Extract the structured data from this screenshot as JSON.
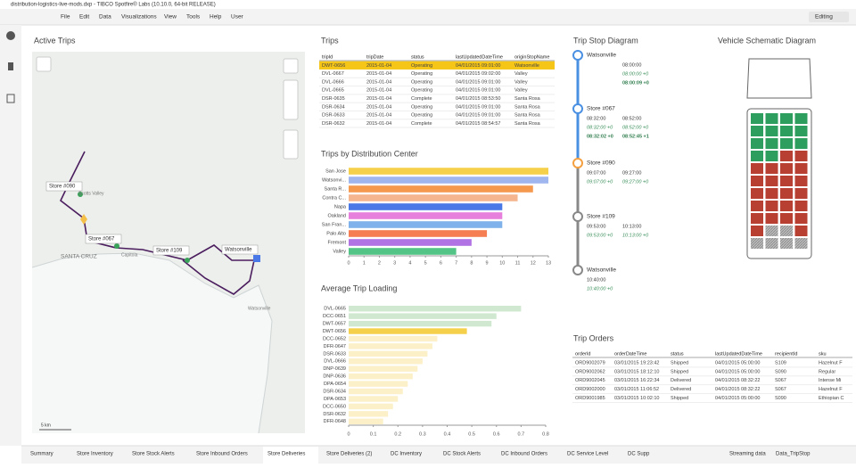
{
  "window": {
    "title": "distribution-logistics-live-mods.dxp - TIBCO Spotfire® Labs (10.10.0, 64-bit RELEASE)",
    "menu": [
      "File",
      "Edit",
      "Data",
      "Visualizations",
      "View",
      "Tools",
      "Help",
      "User"
    ],
    "mode": "Editing"
  },
  "active_trips": {
    "title": "Active Trips",
    "stores": [
      "Store #090",
      "Store #067",
      "Store #109",
      "Watsonville"
    ],
    "places": [
      "Scotts Valley",
      "SANTA CRUZ",
      "Capitola",
      "Watsonville"
    ],
    "scale": "5 km"
  },
  "trips": {
    "title": "Trips",
    "columns": [
      "tripId",
      "tripDate",
      "status",
      "lastUpdatedDateTime",
      "originStopName"
    ],
    "rows": [
      [
        "DWT-0656",
        "2015-01-04",
        "Operating",
        "04/01/2015 09:01:00",
        "Watsonville"
      ],
      [
        "DVL-0667",
        "2015-01-04",
        "Operating",
        "04/01/2015 09:02:00",
        "Valley"
      ],
      [
        "DVL-0666",
        "2015-01-04",
        "Operating",
        "04/01/2015 09:01:00",
        "Valley"
      ],
      [
        "DVL-0665",
        "2015-01-04",
        "Operating",
        "04/01/2015 09:01:00",
        "Valley"
      ],
      [
        "DSR-0635",
        "2015-01-04",
        "Complete",
        "04/01/2015 08:53:50",
        "Santa Rosa"
      ],
      [
        "DSR-0634",
        "2015-01-04",
        "Operating",
        "04/01/2015 09:01:00",
        "Santa Rosa"
      ],
      [
        "DSR-0633",
        "2015-01-04",
        "Operating",
        "04/01/2015 09:01:00",
        "Santa Rosa"
      ],
      [
        "DSR-0632",
        "2015-01-04",
        "Complete",
        "04/01/2015 08:54:57",
        "Santa Rosa"
      ]
    ]
  },
  "trips_by_dc": {
    "type": "bar",
    "title": "Trips by Distribution Center",
    "categories": [
      "San Jose",
      "Watsonvi...",
      "Santa R...",
      "Contra C...",
      "Napa",
      "Oakland",
      "San Fran...",
      "Palo Alto",
      "Fremont",
      "Valley"
    ],
    "values": [
      13,
      13,
      12,
      11,
      10,
      10,
      10,
      9,
      8,
      7
    ],
    "colors": [
      "#f5d04a",
      "#9fb6ee",
      "#f5994e",
      "#f5b58f",
      "#4a78e6",
      "#e77fdc",
      "#7fb2ea",
      "#f57e52",
      "#b172e3",
      "#53c485"
    ],
    "xlim": [
      0,
      13
    ],
    "xticks": [
      0,
      1,
      2,
      3,
      4,
      5,
      6,
      7,
      8,
      9,
      10,
      11,
      12,
      13
    ]
  },
  "avg_trip_loading": {
    "type": "bar",
    "title": "Average Trip Loading",
    "categories": [
      "DVL-0665",
      "DCC-0651",
      "DWT-0657",
      "DWT-0656",
      "DCC-0652",
      "DFR-0647",
      "DSR-0633",
      "DVL-0666",
      "DNP-0639",
      "DNP-0636",
      "DPA-0654",
      "DSR-0634",
      "DPA-0653",
      "DCC-0650",
      "DSR-0632",
      "DFR-0648"
    ],
    "values": [
      0.7,
      0.6,
      0.58,
      0.48,
      0.36,
      0.34,
      0.32,
      0.3,
      0.28,
      0.26,
      0.24,
      0.22,
      0.2,
      0.18,
      0.16,
      0.14
    ],
    "colors": [
      "#cfe8cf",
      "#cfe8cf",
      "#cfe8cf",
      "#f5d04a",
      "#fbf0c8",
      "#fbf0c8",
      "#fbf0c8",
      "#fbf0c8",
      "#fbf0c8",
      "#fbf0c8",
      "#fbf0c8",
      "#fbf0c8",
      "#fbf0c8",
      "#fbf0c8",
      "#fbf0c8",
      "#fbf0c8"
    ],
    "xlim": [
      0,
      0.8
    ],
    "xticks": [
      0,
      0.1,
      0.2,
      0.3,
      0.4,
      0.5,
      0.6,
      0.7,
      0.8
    ]
  },
  "trip_stops": {
    "title": "Trip Stop Diagram",
    "stops": [
      {
        "name": "Watsonville",
        "rows": [
          [
            "08:00:00"
          ],
          [
            "08:00:00 +0"
          ],
          [
            "08:00:09 +0"
          ]
        ]
      },
      {
        "name": "Store #067",
        "rows": [
          [
            "08:32:00",
            "08:52:00"
          ],
          [
            "08:32:00 +0",
            "08:52:00 +0"
          ],
          [
            "08:32:02 +0",
            "08:52:45 +1"
          ]
        ]
      },
      {
        "name": "Store #090",
        "rows": [
          [
            "09:07:00",
            "09:27:00"
          ],
          [
            "09:07:00 +0",
            "09:27:00 +0"
          ]
        ]
      },
      {
        "name": "Store #109",
        "rows": [
          [
            "09:53:00",
            "10:13:00"
          ],
          [
            "09:53:00 +0",
            "10:13:00 +0"
          ]
        ]
      },
      {
        "name": "Watsonville",
        "rows": [
          [
            "10:40:00"
          ],
          [
            "10:40:00 +0"
          ]
        ]
      }
    ]
  },
  "vehicle": {
    "title": "Vehicle Schematic Diagram"
  },
  "trip_orders": {
    "title": "Trip Orders",
    "columns": [
      "orderId",
      "orderDateTime",
      "status",
      "lastUpdatedDateTime",
      "recipientId",
      "sku"
    ],
    "rows": [
      [
        "ORD9002079",
        "03/01/2015 19:23:42",
        "Shipped",
        "04/01/2015 05:00:00",
        "S109",
        "Hazelnut F"
      ],
      [
        "ORD9002062",
        "03/01/2015 18:12:10",
        "Shipped",
        "04/01/2015 05:00:00",
        "S090",
        "Regular"
      ],
      [
        "ORD9002045",
        "03/01/2015 16:22:34",
        "Delivered",
        "04/01/2015 08:32:22",
        "S067",
        "Intense Mi"
      ],
      [
        "ORD9002000",
        "03/01/2015 11:06:52",
        "Delivered",
        "04/01/2015 08:32:22",
        "S067",
        "Hazelnut F"
      ],
      [
        "ORD9001985",
        "03/01/2015 10:02:10",
        "Shipped",
        "04/01/2015 05:00:00",
        "S090",
        "Ethiopian C"
      ]
    ]
  },
  "tabs": [
    "Summary",
    "Store Inventory",
    "Store Stock Alerts",
    "Store Inbound Orders",
    "Store Deliveries",
    "Store Deliveries (2)",
    "DC Inventory",
    "DC Stock Alerts",
    "DC Inbound Orders",
    "DC Service Level",
    "DC Supp"
  ],
  "status_items": [
    "Streaming data",
    "Data_TripStop"
  ]
}
